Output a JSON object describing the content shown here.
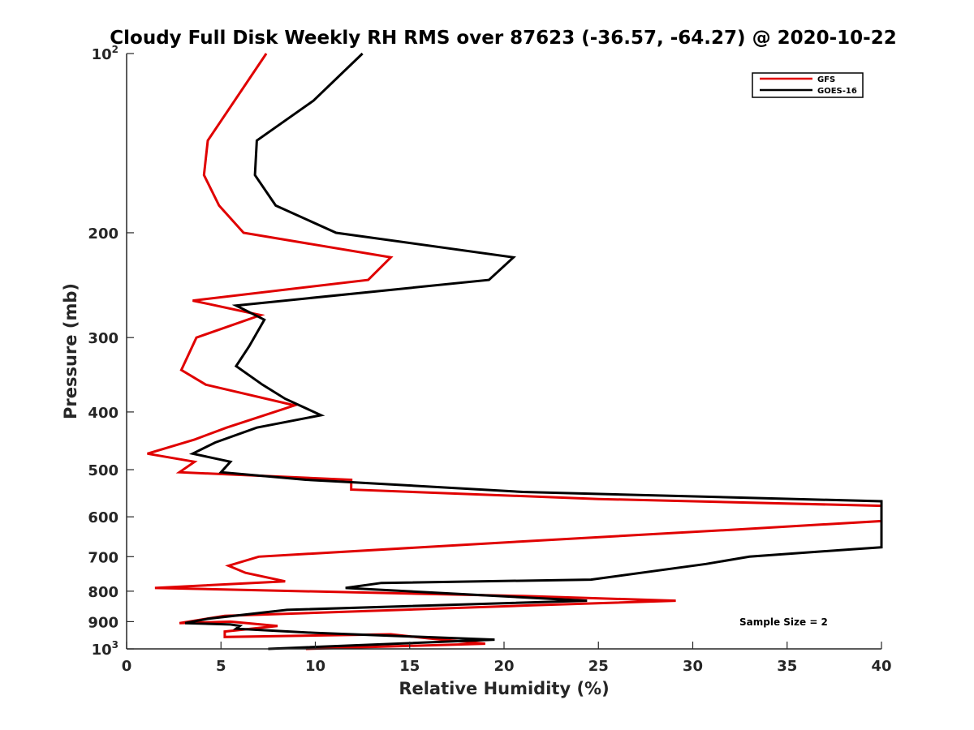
{
  "chart_data": {
    "type": "line",
    "title": "Cloudy Full Disk Weekly RH RMS over 87623 (-36.57, -64.27) @ 2020-10-22",
    "xlabel": "Relative Humidity (%)",
    "ylabel": "Pressure (mb)",
    "xlim": [
      0,
      40
    ],
    "ylim": [
      100,
      1000
    ],
    "y_scale": "log",
    "y_reversed": true,
    "grid": false,
    "legend_position": "top-right",
    "x_ticks": [
      "0",
      "5",
      "10",
      "15",
      "20",
      "25",
      "30",
      "35",
      "40"
    ],
    "y_ticks": [
      {
        "value": 100,
        "label": "10",
        "sup": "2"
      },
      {
        "value": 200,
        "label": "200",
        "sup": ""
      },
      {
        "value": 300,
        "label": "300",
        "sup": ""
      },
      {
        "value": 400,
        "label": "400",
        "sup": ""
      },
      {
        "value": 500,
        "label": "500",
        "sup": ""
      },
      {
        "value": 600,
        "label": "600",
        "sup": ""
      },
      {
        "value": 700,
        "label": "700",
        "sup": ""
      },
      {
        "value": 800,
        "label": "800",
        "sup": ""
      },
      {
        "value": 900,
        "label": "900",
        "sup": ""
      },
      {
        "value": 1000,
        "label": "10",
        "sup": "3"
      }
    ],
    "annotation": "Sample Size = 2",
    "series": [
      {
        "name": "GFS",
        "color": "#e00000",
        "points": [
          [
            7.4,
            100
          ],
          [
            4.3,
            140
          ],
          [
            4.1,
            160
          ],
          [
            4.9,
            180
          ],
          [
            6.2,
            200
          ],
          [
            14.0,
            220
          ],
          [
            12.8,
            240
          ],
          [
            3.5,
            260
          ],
          [
            7.1,
            275
          ],
          [
            3.7,
            300
          ],
          [
            2.9,
            340
          ],
          [
            4.2,
            360
          ],
          [
            8.9,
            390
          ],
          [
            5.3,
            425
          ],
          [
            3.6,
            445
          ],
          [
            1.1,
            470
          ],
          [
            3.6,
            485
          ],
          [
            2.8,
            505
          ],
          [
            11.9,
            520
          ],
          [
            11.9,
            540
          ],
          [
            25.0,
            560
          ],
          [
            40.0,
            575
          ],
          [
            40.0,
            610
          ],
          [
            32.4,
            630
          ],
          [
            21.0,
            660
          ],
          [
            7.0,
            700
          ],
          [
            5.4,
            725
          ],
          [
            6.3,
            745
          ],
          [
            8.4,
            770
          ],
          [
            1.5,
            790
          ],
          [
            21.0,
            815
          ],
          [
            29.1,
            830
          ],
          [
            21.5,
            845
          ],
          [
            5.2,
            880
          ],
          [
            2.8,
            905
          ],
          [
            5.5,
            900
          ],
          [
            8.0,
            915
          ],
          [
            5.2,
            935
          ],
          [
            5.2,
            955
          ],
          [
            14.0,
            945
          ],
          [
            16.0,
            960
          ],
          [
            19.0,
            980
          ],
          [
            9.5,
            1000
          ]
        ]
      },
      {
        "name": "GOES-16",
        "color": "#000000",
        "points": [
          [
            12.5,
            100
          ],
          [
            9.9,
            120
          ],
          [
            6.9,
            140
          ],
          [
            6.8,
            160
          ],
          [
            7.9,
            180
          ],
          [
            11.1,
            200
          ],
          [
            20.5,
            220
          ],
          [
            19.2,
            240
          ],
          [
            5.8,
            265
          ],
          [
            7.3,
            280
          ],
          [
            6.5,
            310
          ],
          [
            5.8,
            335
          ],
          [
            7.2,
            360
          ],
          [
            8.4,
            380
          ],
          [
            10.3,
            405
          ],
          [
            6.9,
            425
          ],
          [
            4.7,
            450
          ],
          [
            3.5,
            470
          ],
          [
            5.5,
            485
          ],
          [
            5.0,
            505
          ],
          [
            9.5,
            520
          ],
          [
            12.0,
            525
          ],
          [
            21.0,
            545
          ],
          [
            40.0,
            565
          ],
          [
            40.0,
            675
          ],
          [
            38.5,
            680
          ],
          [
            33.0,
            700
          ],
          [
            30.7,
            720
          ],
          [
            24.6,
            765
          ],
          [
            13.5,
            775
          ],
          [
            11.6,
            790
          ],
          [
            24.4,
            830
          ],
          [
            8.5,
            860
          ],
          [
            4.3,
            890
          ],
          [
            3.1,
            905
          ],
          [
            5.5,
            910
          ],
          [
            6.0,
            915
          ],
          [
            5.8,
            925
          ],
          [
            10.0,
            940
          ],
          [
            19.5,
            965
          ],
          [
            7.5,
            1000
          ]
        ]
      }
    ]
  }
}
